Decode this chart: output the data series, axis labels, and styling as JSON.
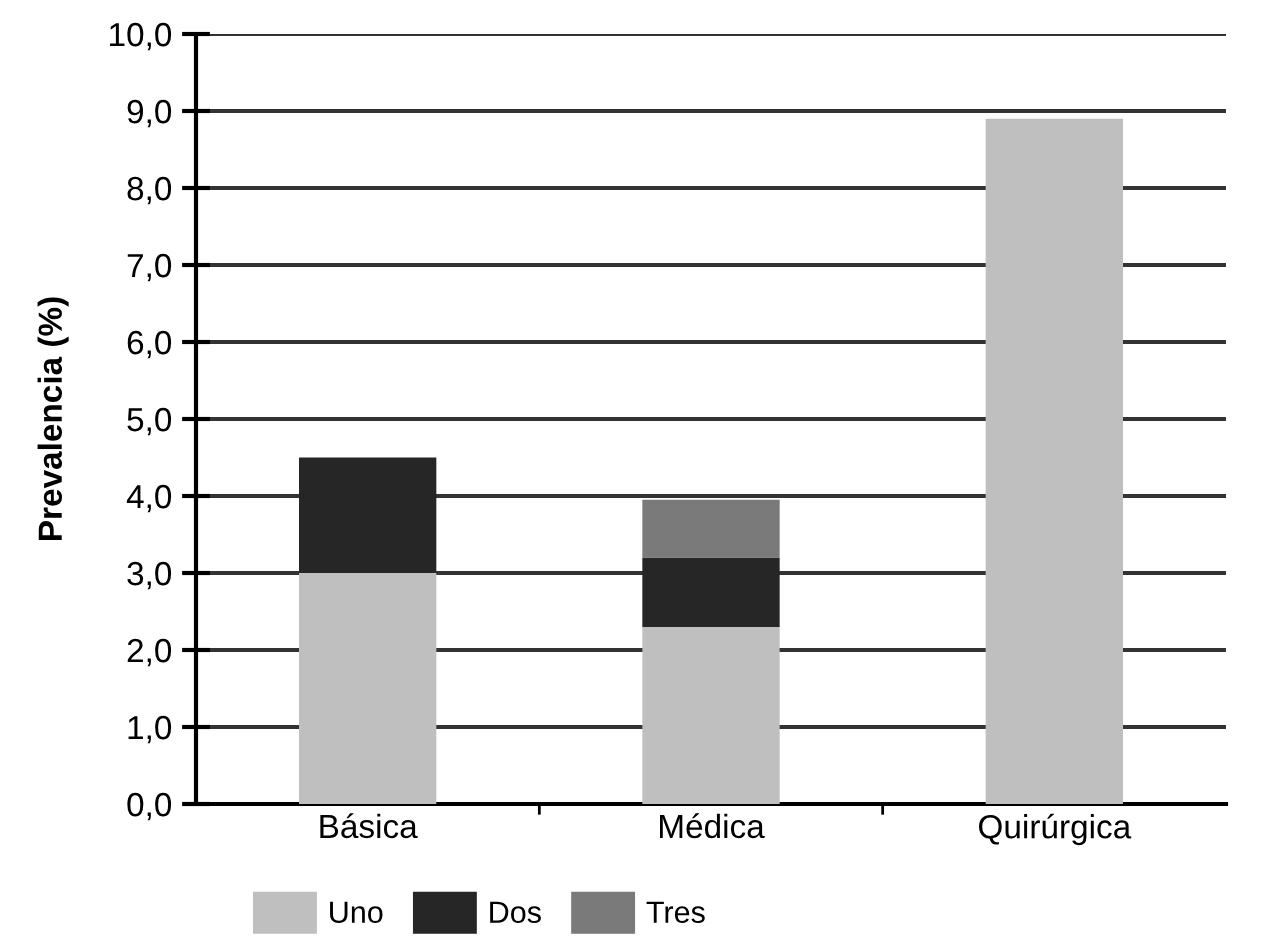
{
  "chart_data": {
    "type": "bar",
    "stacked": true,
    "ylabel": "Prevalencia (%)",
    "categories": [
      "Básica",
      "Médica",
      "Quirúrgica"
    ],
    "series": [
      {
        "name": "Uno",
        "color": "#bfbfbf",
        "values": [
          3.0,
          2.3,
          8.9
        ]
      },
      {
        "name": "Dos",
        "color": "#262626",
        "values": [
          1.5,
          0.9,
          null
        ]
      },
      {
        "name": "Tres",
        "color": "#7a7a7a",
        "values": [
          null,
          0.75,
          null
        ]
      }
    ],
    "ylim": [
      0,
      10
    ],
    "yticks": [
      {
        "value": 0,
        "label": "0,0"
      },
      {
        "value": 1,
        "label": "1,0"
      },
      {
        "value": 2,
        "label": "2,0"
      },
      {
        "value": 3,
        "label": "3,0"
      },
      {
        "value": 4,
        "label": "4,0"
      },
      {
        "value": 5,
        "label": "5,0"
      },
      {
        "value": 6,
        "label": "6,0"
      },
      {
        "value": 7,
        "label": "7,0"
      },
      {
        "value": 8,
        "label": "8,0"
      },
      {
        "value": 9,
        "label": "9,0"
      },
      {
        "value": 10,
        "label": "10,0"
      }
    ],
    "grid": "y",
    "legend": "bottom left"
  }
}
